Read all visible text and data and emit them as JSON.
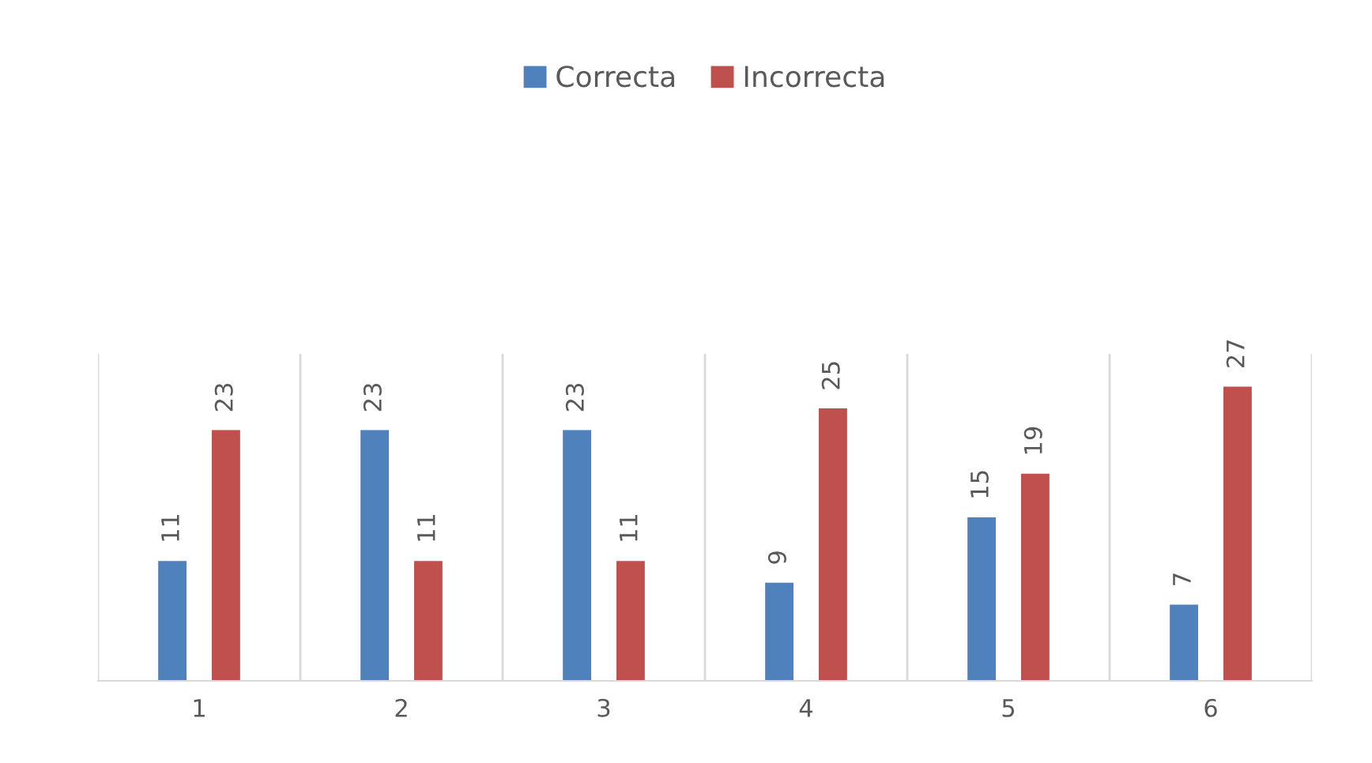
{
  "chart_data": {
    "type": "bar",
    "categories": [
      "1",
      "2",
      "3",
      "4",
      "5",
      "6"
    ],
    "series": [
      {
        "name": "Correcta",
        "color": "#4f81bd",
        "values": [
          11,
          23,
          23,
          9,
          15,
          7
        ]
      },
      {
        "name": "Incorrecta",
        "color": "#c0504d",
        "values": [
          23,
          11,
          11,
          25,
          19,
          27
        ]
      }
    ],
    "ylim": [
      0,
      30
    ],
    "data_labels": true,
    "grid": "x",
    "legend": "top",
    "tick_labels": "x"
  }
}
